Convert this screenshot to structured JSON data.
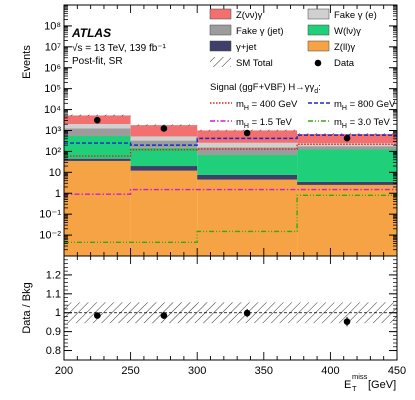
{
  "chart_data": {
    "type": "bar",
    "label_atlas": "ATLAS",
    "label_energy": "√s = 13 TeV, 139 fb⁻¹",
    "label_region": "Post-fit, SR",
    "xlabel": "E",
    "xlabel_sub": "T",
    "xlabel_sup": "miss",
    "xlabel_unit": "[GeV]",
    "ylabel_top": "Events",
    "ylabel_bottom": "Data / Bkg",
    "xlim": [
      200,
      450
    ],
    "ylim_top": [
      0.001,
      1000000000
    ],
    "ylim_bottom": [
      0.75,
      1.3
    ],
    "bin_edges": [
      200,
      250,
      300,
      375,
      450
    ],
    "x_ticks": [
      200,
      250,
      300,
      350,
      400,
      450
    ],
    "y_ticks_top": [
      {
        "v": 0.01,
        "label": "10⁻²"
      },
      {
        "v": 0.1,
        "label": "10⁻¹"
      },
      {
        "v": 1,
        "label": "1"
      },
      {
        "v": 10,
        "label": "10"
      },
      {
        "v": 100,
        "label": "10²"
      },
      {
        "v": 1000,
        "label": "10³"
      },
      {
        "v": 10000,
        "label": "10⁴"
      },
      {
        "v": 100000,
        "label": "10⁵"
      },
      {
        "v": 1000000,
        "label": "10⁶"
      },
      {
        "v": 10000000,
        "label": "10⁷"
      },
      {
        "v": 100000000,
        "label": "10⁸"
      }
    ],
    "y_ticks_bottom": [
      0.8,
      0.9,
      1.0,
      1.1,
      1.2
    ],
    "y_ticks_bottom_labels": [
      "0.8",
      "0.9",
      "1",
      "1.1",
      "1.2"
    ],
    "stack": [
      {
        "name": "Z(ll)γ",
        "color": "#f5a344",
        "values": [
          35,
          12,
          4.5,
          2.5
        ]
      },
      {
        "name": "γ+jet",
        "color": "#3f3f6b",
        "values": [
          10,
          8,
          3,
          1
        ]
      },
      {
        "name": "W(lν)γ",
        "color": "#1fcf7a",
        "values": [
          500,
          130,
          60,
          120
        ]
      },
      {
        "name": "Fake γ (jet)",
        "color": "#9c9c9c",
        "values": [
          700,
          180,
          90,
          55
        ]
      },
      {
        "name": "Fake γ (e)",
        "color": "#d0d0d0",
        "values": [
          800,
          190,
          100,
          70
        ]
      },
      {
        "name": "Z(νν)γ",
        "color": "#f27070",
        "values": [
          3200,
          1280,
          750,
          430
        ]
      }
    ],
    "sm_total": [
      5250,
      1800,
      1007,
      678
    ],
    "data": {
      "name": "Data",
      "x": [
        225,
        275,
        337.5,
        412.5
      ],
      "values": [
        3100,
        1250,
        760,
        430
      ],
      "ratio": [
        0.985,
        0.985,
        0.998,
        0.953
      ],
      "ratio_err": [
        0.014,
        0.018,
        0.022,
        0.025
      ]
    },
    "ratio_band": [
      0.055,
      0.055,
      0.055,
      0.055
    ],
    "signal_title": "Signal (ggF+VBF) H→γγ",
    "signal_title_sub": "d",
    "signal_title_colon": ":",
    "signals": [
      {
        "name": "m",
        "sub": "H",
        "text": " = 400 GeV",
        "color": "#e0231b",
        "dash": "1.5,1.5",
        "values": [
          60,
          120,
          130,
          220
        ]
      },
      {
        "name": "m",
        "sub": "H",
        "text": " = 800 GeV",
        "color": "#1b28c8",
        "dash": "4,2",
        "values": [
          250,
          200,
          420,
          600
        ]
      },
      {
        "name": "m",
        "sub": "H",
        "text": " = 1.5 TeV",
        "color": "#d11dd1",
        "dash": "5,2,1.5,2",
        "values": [
          0.9,
          1.5,
          1.5,
          1.5
        ]
      },
      {
        "name": "m",
        "sub": "H",
        "text": " = 3.0 TeV",
        "color": "#33aa11",
        "dash": "5,2,1,2,1,2",
        "values": [
          0.0045,
          0.0045,
          0.015,
          0.8
        ]
      }
    ],
    "sm_total_label": "SM Total"
  }
}
